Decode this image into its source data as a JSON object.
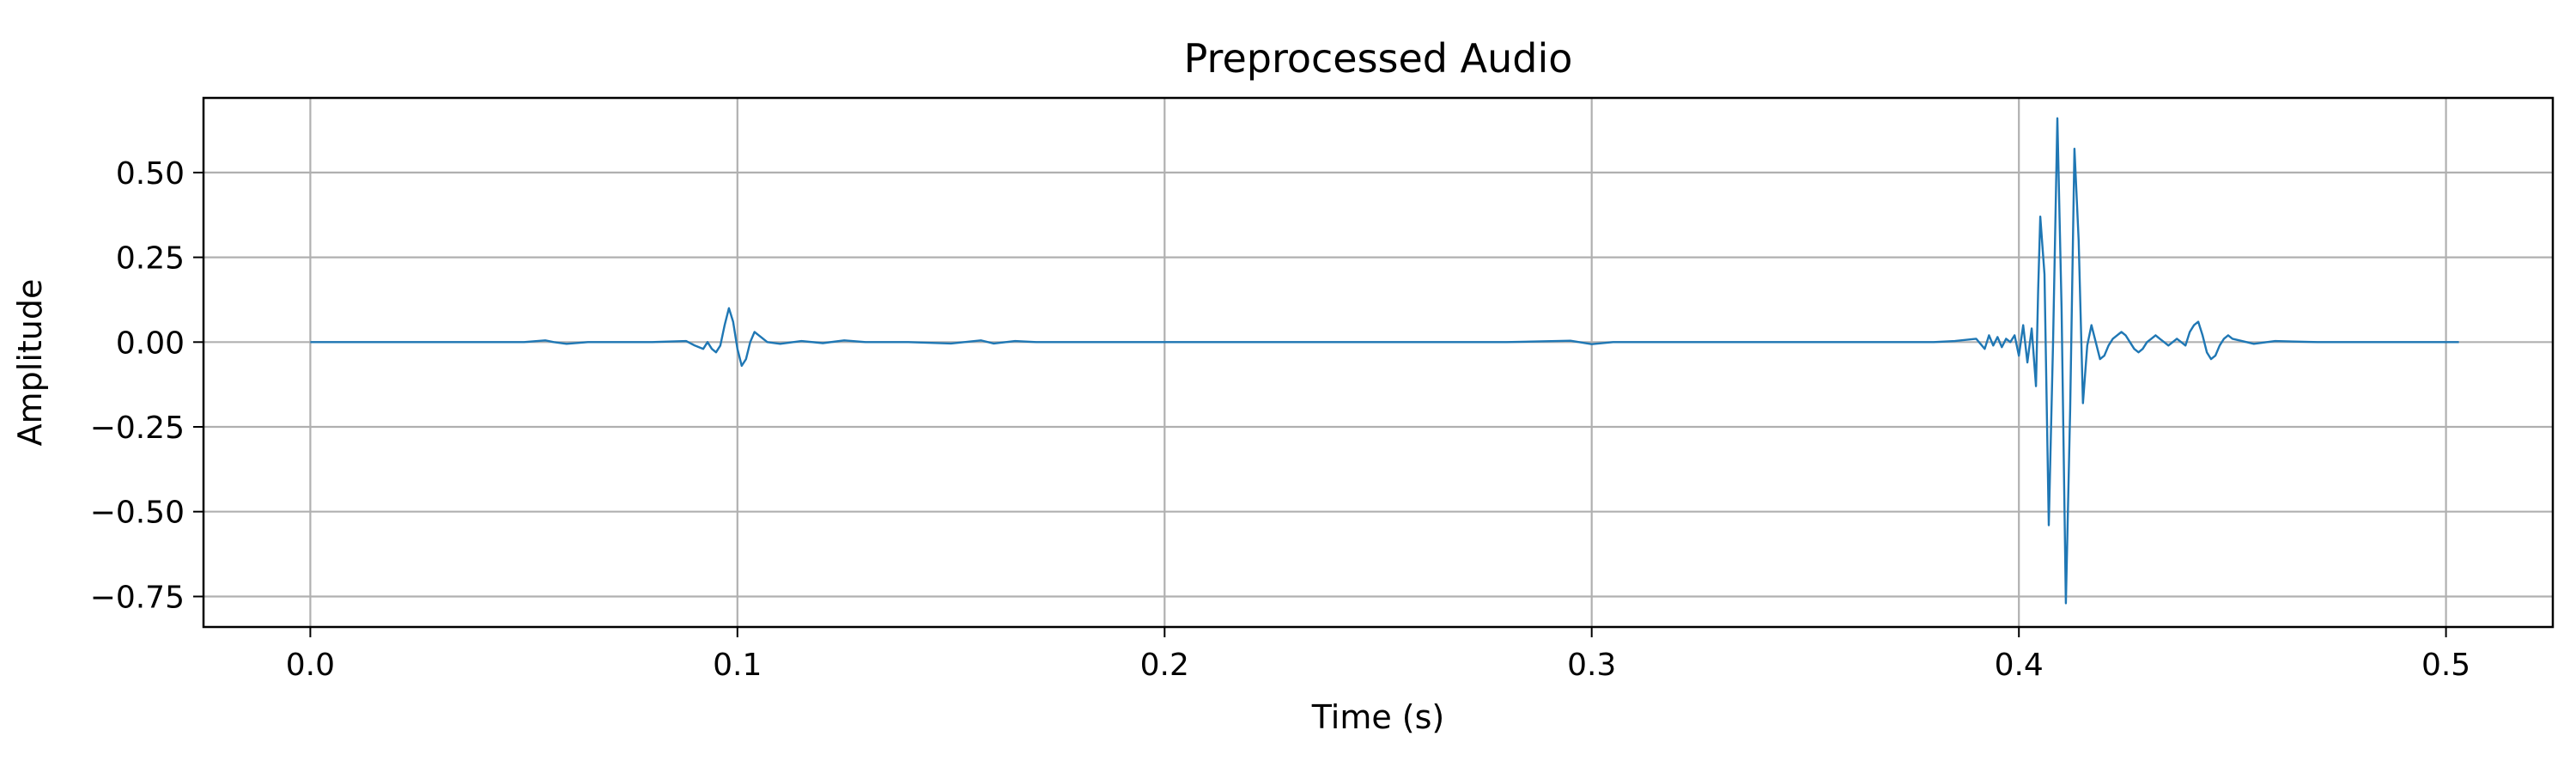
{
  "chart_data": {
    "type": "line",
    "title": "Preprocessed Audio",
    "xlabel": "Time (s)",
    "ylabel": "Amplitude",
    "xlim": [
      -0.025,
      0.525
    ],
    "ylim": [
      -0.84,
      0.72
    ],
    "grid": true,
    "x_ticks": [
      0.0,
      0.1,
      0.2,
      0.3,
      0.4,
      0.5
    ],
    "x_tick_labels": [
      "0.0",
      "0.1",
      "0.2",
      "0.3",
      "0.4",
      "0.5"
    ],
    "y_ticks": [
      0.5,
      0.25,
      0.0,
      -0.25,
      -0.5,
      -0.75
    ],
    "y_tick_labels": [
      "0.50",
      "0.25",
      "0.00",
      "−0.25",
      "−0.50",
      "−0.75"
    ],
    "line_color": "#1f77b4",
    "series": [
      {
        "x": [
          0.0,
          0.02,
          0.04,
          0.05,
          0.055,
          0.057,
          0.06,
          0.065,
          0.07,
          0.08,
          0.088,
          0.09,
          0.092,
          0.093,
          0.094,
          0.095,
          0.096,
          0.097,
          0.098,
          0.099,
          0.1,
          0.101,
          0.102,
          0.103,
          0.104,
          0.105,
          0.107,
          0.11,
          0.115,
          0.12,
          0.125,
          0.13,
          0.14,
          0.15,
          0.157,
          0.16,
          0.165,
          0.17,
          0.18,
          0.19,
          0.2,
          0.22,
          0.24,
          0.26,
          0.28,
          0.295,
          0.3,
          0.305,
          0.32,
          0.34,
          0.36,
          0.37,
          0.38,
          0.385,
          0.39,
          0.392,
          0.393,
          0.394,
          0.395,
          0.396,
          0.397,
          0.398,
          0.399,
          0.4,
          0.401,
          0.402,
          0.403,
          0.404,
          0.4045,
          0.405,
          0.406,
          0.407,
          0.408,
          0.409,
          0.41,
          0.411,
          0.412,
          0.413,
          0.414,
          0.415,
          0.416,
          0.417,
          0.418,
          0.419,
          0.42,
          0.421,
          0.422,
          0.423,
          0.424,
          0.425,
          0.426,
          0.427,
          0.428,
          0.429,
          0.43,
          0.431,
          0.432,
          0.433,
          0.434,
          0.435,
          0.436,
          0.437,
          0.438,
          0.439,
          0.44,
          0.441,
          0.442,
          0.443,
          0.444,
          0.445,
          0.446,
          0.447,
          0.448,
          0.449,
          0.45,
          0.455,
          0.46,
          0.47,
          0.48,
          0.49,
          0.503
        ],
        "y": [
          0.0,
          0.0,
          0.0,
          0.0,
          0.005,
          0.0,
          -0.005,
          0.0,
          0.0,
          0.0,
          0.003,
          -0.01,
          -0.02,
          0.0,
          -0.02,
          -0.03,
          -0.01,
          0.05,
          0.1,
          0.06,
          -0.02,
          -0.07,
          -0.05,
          0.0,
          0.03,
          0.02,
          0.0,
          -0.005,
          0.003,
          -0.003,
          0.005,
          0.0,
          0.0,
          -0.004,
          0.005,
          -0.004,
          0.003,
          0.0,
          0.0,
          0.0,
          0.0,
          0.0,
          0.0,
          0.0,
          0.0,
          0.004,
          -0.006,
          0.0,
          0.0,
          0.0,
          0.0,
          0.0,
          0.0,
          0.003,
          0.01,
          -0.02,
          0.02,
          -0.01,
          0.015,
          -0.015,
          0.01,
          0.0,
          0.02,
          -0.04,
          0.05,
          -0.06,
          0.04,
          -0.13,
          0.15,
          0.37,
          0.2,
          -0.54,
          0.0,
          0.66,
          0.1,
          -0.77,
          -0.2,
          0.57,
          0.3,
          -0.18,
          -0.01,
          0.05,
          0.0,
          -0.05,
          -0.04,
          -0.01,
          0.01,
          0.02,
          0.03,
          0.02,
          0.0,
          -0.02,
          -0.03,
          -0.02,
          0.0,
          0.01,
          0.02,
          0.01,
          0.0,
          -0.01,
          0.0,
          0.01,
          0.0,
          -0.01,
          0.03,
          0.05,
          0.06,
          0.02,
          -0.03,
          -0.05,
          -0.04,
          -0.01,
          0.01,
          0.02,
          0.01,
          -0.005,
          0.003,
          0.0,
          0.0,
          0.0,
          0.0
        ]
      }
    ]
  }
}
